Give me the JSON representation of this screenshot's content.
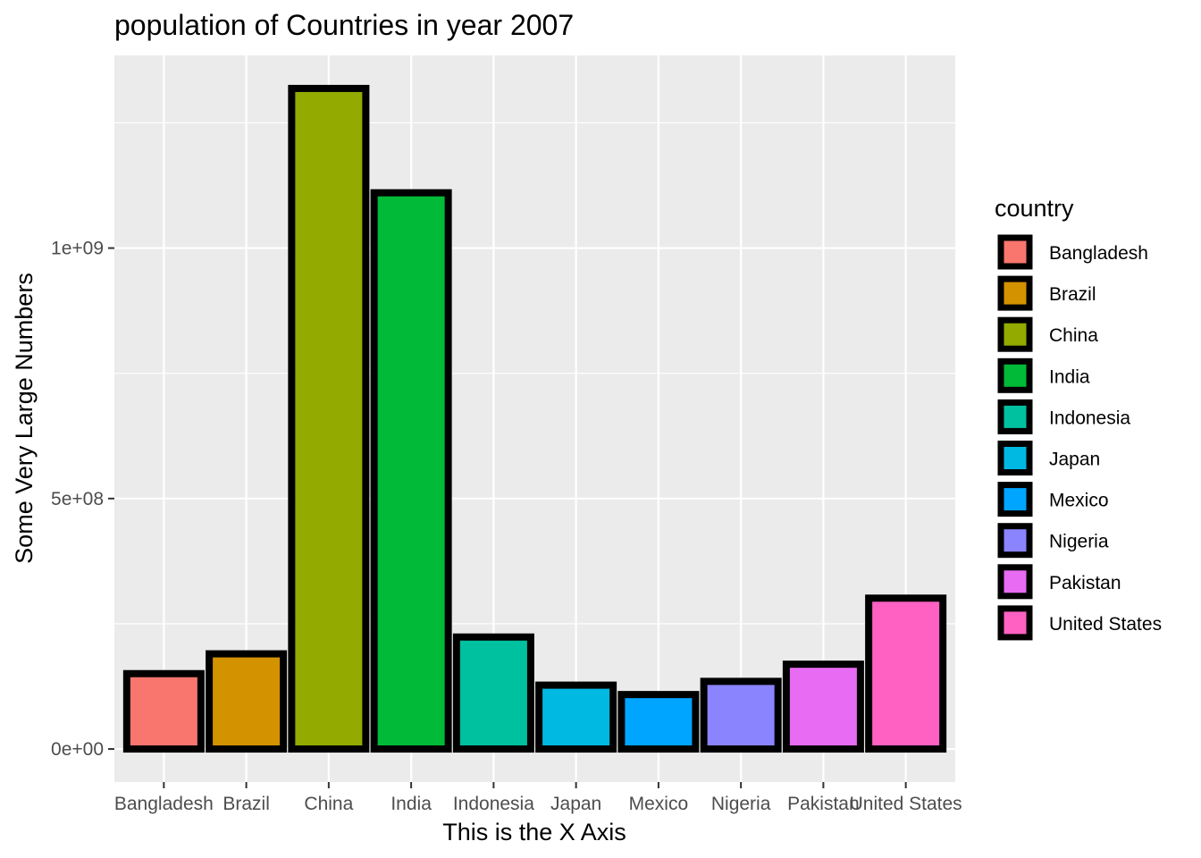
{
  "chart_data": {
    "type": "bar",
    "title": "population of Countries in year 2007",
    "xlabel": "This is the X Axis",
    "ylabel": "Some Very Large Numbers",
    "categories": [
      "Bangladesh",
      "Brazil",
      "China",
      "India",
      "Indonesia",
      "Japan",
      "Mexico",
      "Nigeria",
      "Pakistan",
      "United States"
    ],
    "values": [
      150448339,
      190010647,
      1318683096,
      1110396331,
      223547000,
      127467972,
      108700891,
      135031164,
      169270617,
      301139947
    ],
    "colors": [
      "#F8766D",
      "#D39200",
      "#93AA00",
      "#00BA38",
      "#00C19F",
      "#00B9E3",
      "#00A5FF",
      "#8A84FF",
      "#E76BF3",
      "#FF61C3"
    ],
    "bar_outline": "#000000",
    "yticks": [
      0,
      500000000,
      1000000000
    ],
    "ytick_labels": [
      "0e+00",
      "5e+08",
      "1e+09"
    ],
    "ylim": [
      -65934155,
      1384617251
    ],
    "grid": true,
    "panel_background": "#EBEBEB",
    "legend": {
      "title": "country",
      "position": "right",
      "entries": [
        "Bangladesh",
        "Brazil",
        "China",
        "India",
        "Indonesia",
        "Japan",
        "Mexico",
        "Nigeria",
        "Pakistan",
        "United States"
      ]
    }
  }
}
